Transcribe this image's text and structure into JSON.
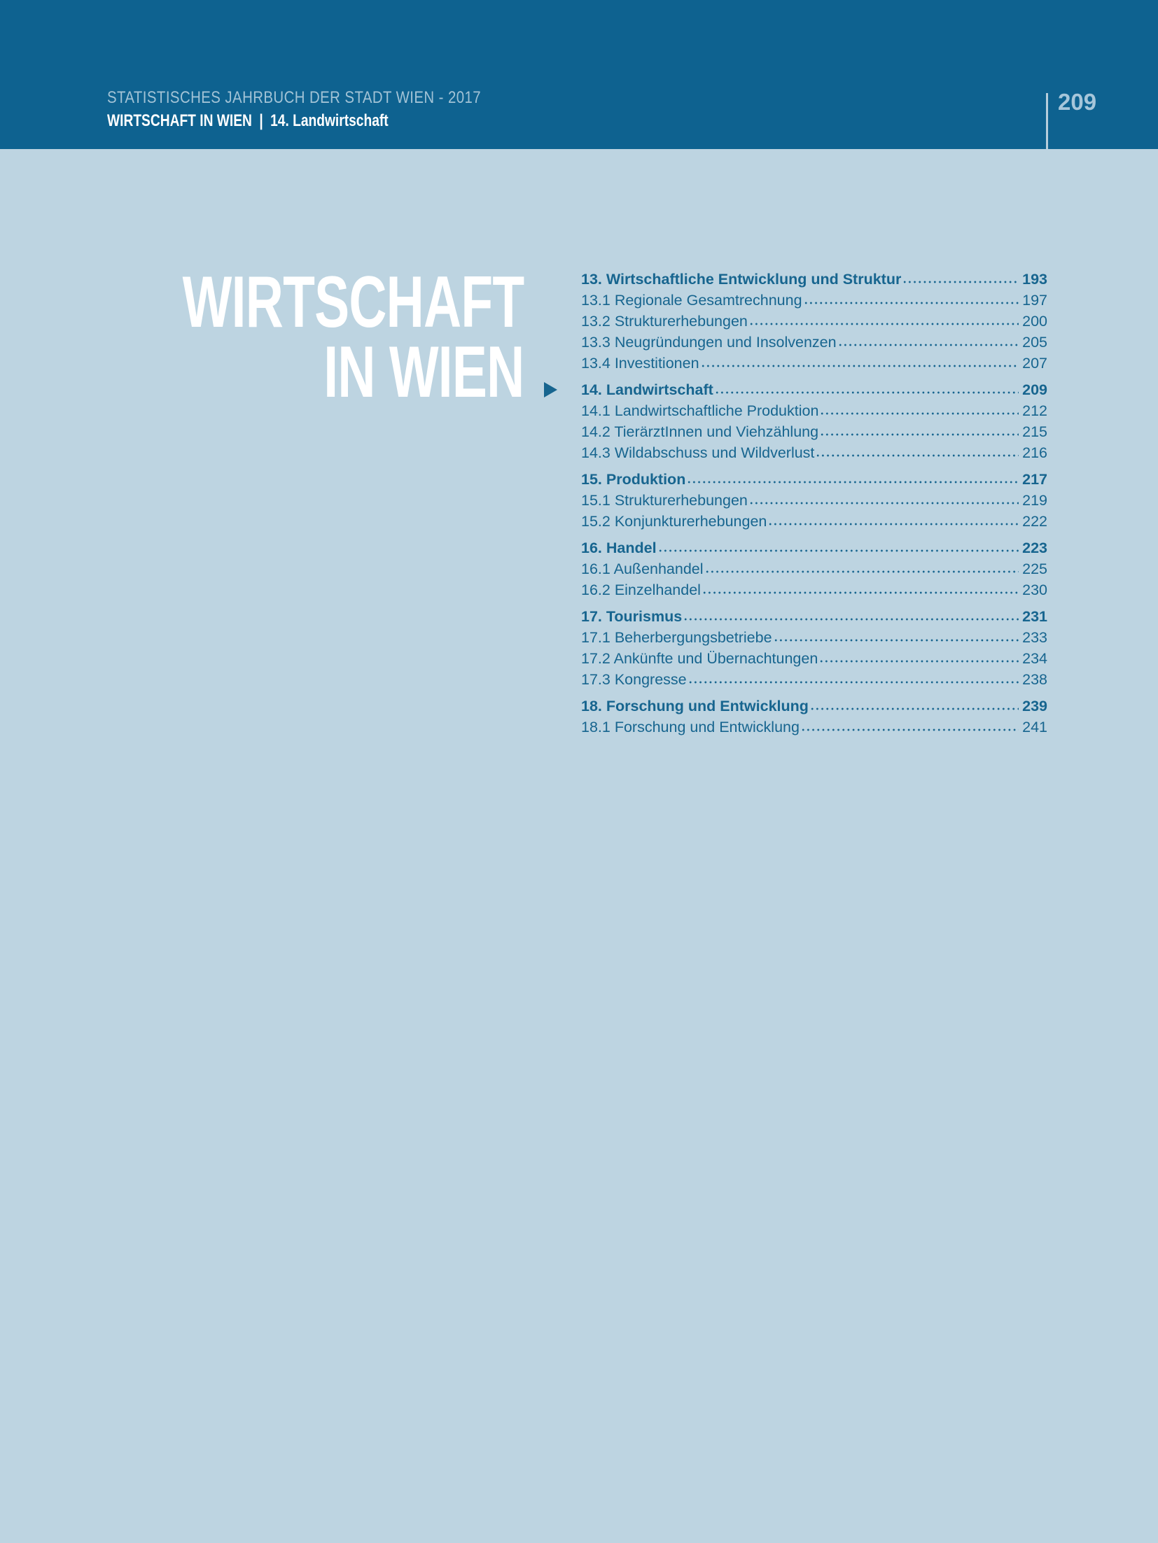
{
  "colors": {
    "header_band": "#0e6290",
    "page_bg": "#bdd4e1",
    "toc_text": "#17658f",
    "header_muted_text": "#a2c3d6",
    "header_page_number": "#a6c6da",
    "header_rule": "#b6cddc",
    "title_text": "#ffffff"
  },
  "header": {
    "book_title": "STATISTISCHES JAHRBUCH DER STADT WIEN - 2017",
    "chapter": "WIRTSCHAFT IN WIEN",
    "separator": "|",
    "section": "14. Landwirtschaft",
    "page_number": "209"
  },
  "title": {
    "line1": "WIRTSCHAFT",
    "line2": "IN WIEN"
  },
  "toc": {
    "active_item": "14. Landwirtschaft",
    "marker_icon": "right-triangle",
    "items": [
      {
        "label": "13. Wirtschaftliche Entwicklung und Struktur",
        "page": "193",
        "bold": true,
        "active": false
      },
      {
        "label": "13.1 Regionale Gesamtrechnung",
        "page": "197",
        "bold": false,
        "active": false
      },
      {
        "label": "13.2 Strukturerhebungen",
        "page": "200",
        "bold": false,
        "active": false
      },
      {
        "label": "13.3 Neugründungen und Insolvenzen",
        "page": "205",
        "bold": false,
        "active": false
      },
      {
        "label": "13.4 Investitionen",
        "page": "207",
        "bold": false,
        "active": false
      },
      {
        "label": "14. Landwirtschaft",
        "page": "209",
        "bold": true,
        "active": true
      },
      {
        "label": "14.1 Landwirtschaftliche Produktion",
        "page": "212",
        "bold": false,
        "active": false
      },
      {
        "label": "14.2 TierärztInnen und Viehzählung",
        "page": "215",
        "bold": false,
        "active": false
      },
      {
        "label": "14.3 Wildabschuss und Wildverlust",
        "page": "216",
        "bold": false,
        "active": false
      },
      {
        "label": "15. Produktion",
        "page": "217",
        "bold": true,
        "active": false
      },
      {
        "label": "15.1 Strukturerhebungen",
        "page": "219",
        "bold": false,
        "active": false
      },
      {
        "label": "15.2 Konjunkturerhebungen",
        "page": "222",
        "bold": false,
        "active": false
      },
      {
        "label": "16. Handel",
        "page": "223",
        "bold": true,
        "active": false
      },
      {
        "label": "16.1 Außenhandel",
        "page": "225",
        "bold": false,
        "active": false
      },
      {
        "label": "16.2 Einzelhandel",
        "page": "230",
        "bold": false,
        "active": false
      },
      {
        "label": "17. Tourismus",
        "page": "231",
        "bold": true,
        "active": false
      },
      {
        "label": "17.1 Beherbergungsbetriebe",
        "page": "233",
        "bold": false,
        "active": false
      },
      {
        "label": "17.2 Ankünfte und Übernachtungen",
        "page": "234",
        "bold": false,
        "active": false
      },
      {
        "label": "17.3 Kongresse",
        "page": "238",
        "bold": false,
        "active": false
      },
      {
        "label": "18. Forschung und Entwicklung",
        "page": "239",
        "bold": true,
        "active": false
      },
      {
        "label": "18.1 Forschung und Entwicklung",
        "page": "241",
        "bold": false,
        "active": false
      }
    ]
  }
}
